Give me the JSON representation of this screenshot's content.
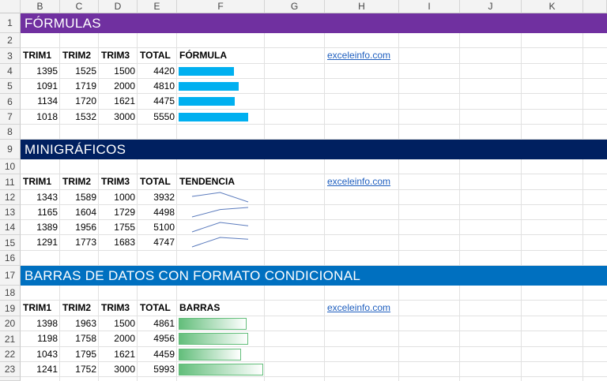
{
  "columns": [
    "B",
    "C",
    "D",
    "E",
    "F",
    "G",
    "H",
    "I",
    "J",
    "K"
  ],
  "rows": [
    "1",
    "2",
    "3",
    "4",
    "5",
    "6",
    "7",
    "8",
    "9",
    "10",
    "11",
    "12",
    "13",
    "14",
    "15",
    "16",
    "17",
    "18",
    "19",
    "20",
    "21",
    "22",
    "23"
  ],
  "sections": [
    {
      "title": "FÓRMULAS",
      "color": "#7030a0",
      "headers": [
        "TRIM1",
        "TRIM2",
        "TRIM3",
        "TOTAL",
        "FÓRMULA"
      ],
      "link": "exceleinfo.com",
      "bar_color": "#00b0f0",
      "data": [
        [
          1395,
          1525,
          1500,
          4420
        ],
        [
          1091,
          1719,
          2000,
          4810
        ],
        [
          1134,
          1720,
          1621,
          4475
        ],
        [
          1018,
          1532,
          3000,
          5550
        ]
      ]
    },
    {
      "title": "MINIGRÁFICOS",
      "color": "#002060",
      "headers": [
        "TRIM1",
        "TRIM2",
        "TRIM3",
        "TOTAL",
        "TENDENCIA"
      ],
      "link": "exceleinfo.com",
      "bar_color": "#4472c4",
      "data": [
        [
          1343,
          1589,
          1000,
          3932
        ],
        [
          1165,
          1604,
          1729,
          4498
        ],
        [
          1389,
          1956,
          1755,
          5100
        ],
        [
          1291,
          1773,
          1683,
          4747
        ]
      ]
    },
    {
      "title": "BARRAS DE DATOS CON FORMATO CONDICIONAL",
      "color": "#0070c0",
      "headers": [
        "TRIM1",
        "TRIM2",
        "TRIM3",
        "TOTAL",
        "BARRAS"
      ],
      "link": "exceleinfo.com",
      "bar_color": "#63be7b",
      "data": [
        [
          1398,
          1963,
          1500,
          4861
        ],
        [
          1198,
          1758,
          2000,
          4956
        ],
        [
          1043,
          1795,
          1621,
          4459
        ],
        [
          1241,
          1752,
          3000,
          5993
        ]
      ]
    }
  ]
}
